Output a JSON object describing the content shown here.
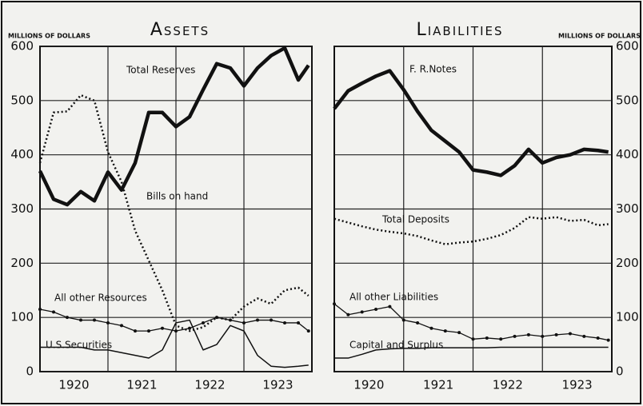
{
  "chart_data": [
    {
      "type": "line",
      "title": "Assets",
      "y_axis_label": "MILLIONS OF DOLLARS",
      "y_axis_position": "left",
      "xlim": [
        1920,
        1924
      ],
      "xticks": [
        {
          "value": 1920.5,
          "label": "1920"
        },
        {
          "value": 1921.5,
          "label": "1921"
        },
        {
          "value": 1922.5,
          "label": "1922"
        },
        {
          "value": 1923.5,
          "label": "1923"
        }
      ],
      "xgrid": [
        1921,
        1922,
        1923
      ],
      "ylim": [
        0,
        600
      ],
      "yticks": [
        0,
        100,
        200,
        300,
        400,
        500,
        600
      ],
      "grid": true,
      "x": [
        1920.0,
        1920.2,
        1920.4,
        1920.6,
        1920.8,
        1921.0,
        1921.2,
        1921.4,
        1921.6,
        1921.8,
        1922.0,
        1922.2,
        1922.4,
        1922.6,
        1922.8,
        1923.0,
        1923.2,
        1923.4,
        1923.6,
        1923.8,
        1923.95
      ],
      "series": [
        {
          "name": "Total Reserves",
          "color": "#111111",
          "style": "thick",
          "values": [
            370,
            318,
            308,
            332,
            315,
            368,
            335,
            385,
            478,
            478,
            452,
            470,
            520,
            568,
            560,
            527,
            560,
            583,
            597,
            538,
            565
          ]
        },
        {
          "name": "Bills on hand",
          "color": "#111111",
          "style": "dotted",
          "values": [
            385,
            478,
            480,
            510,
            500,
            405,
            350,
            260,
            205,
            150,
            85,
            75,
            82,
            100,
            95,
            120,
            135,
            125,
            150,
            155,
            140
          ]
        },
        {
          "name": "All other Resources",
          "color": "#111111",
          "style": "marker",
          "values": [
            115,
            110,
            100,
            95,
            95,
            90,
            85,
            75,
            75,
            80,
            75,
            80,
            90,
            100,
            95,
            90,
            95,
            95,
            90,
            90,
            75
          ]
        },
        {
          "name": "U.S.Securities",
          "color": "#111111",
          "style": "thin",
          "values": [
            45,
            45,
            45,
            45,
            40,
            40,
            35,
            30,
            25,
            40,
            90,
            95,
            40,
            50,
            85,
            75,
            30,
            10,
            8,
            10,
            12
          ]
        }
      ]
    },
    {
      "type": "line",
      "title": "Liabilities",
      "y_axis_label": "MILLIONS OF DOLLARS",
      "y_axis_position": "right",
      "xlim": [
        1920,
        1924
      ],
      "xticks": [
        {
          "value": 1920.5,
          "label": "1920"
        },
        {
          "value": 1921.5,
          "label": "1921"
        },
        {
          "value": 1922.5,
          "label": "1922"
        },
        {
          "value": 1923.5,
          "label": "1923"
        }
      ],
      "xgrid": [
        1921,
        1922,
        1923
      ],
      "ylim": [
        0,
        600
      ],
      "yticks": [
        0,
        100,
        200,
        300,
        400,
        500,
        600
      ],
      "grid": true,
      "x": [
        1920.0,
        1920.2,
        1920.4,
        1920.6,
        1920.8,
        1921.0,
        1921.2,
        1921.4,
        1921.6,
        1921.8,
        1922.0,
        1922.2,
        1922.4,
        1922.6,
        1922.8,
        1923.0,
        1923.2,
        1923.4,
        1923.6,
        1923.8,
        1923.95
      ],
      "series": [
        {
          "name": "F. R.Notes",
          "color": "#111111",
          "style": "thick",
          "values": [
            485,
            518,
            532,
            545,
            555,
            520,
            480,
            445,
            425,
            405,
            372,
            368,
            362,
            380,
            410,
            385,
            395,
            400,
            410,
            408,
            405
          ]
        },
        {
          "name": "Total Deposits",
          "color": "#111111",
          "style": "dotted",
          "values": [
            282,
            275,
            268,
            262,
            258,
            255,
            250,
            242,
            235,
            238,
            240,
            245,
            252,
            265,
            285,
            282,
            285,
            278,
            280,
            270,
            272
          ]
        },
        {
          "name": "All other Liabilities",
          "color": "#111111",
          "style": "marker",
          "values": [
            125,
            105,
            110,
            115,
            120,
            95,
            90,
            80,
            75,
            72,
            60,
            62,
            60,
            65,
            68,
            65,
            68,
            70,
            65,
            62,
            58
          ]
        },
        {
          "name": "Capital and Surplus",
          "color": "#111111",
          "style": "thin",
          "values": [
            25,
            25,
            32,
            40,
            42,
            43,
            43,
            44,
            44,
            44,
            44,
            44,
            45,
            45,
            45,
            45,
            45,
            45,
            45,
            45,
            45
          ]
        }
      ]
    }
  ]
}
